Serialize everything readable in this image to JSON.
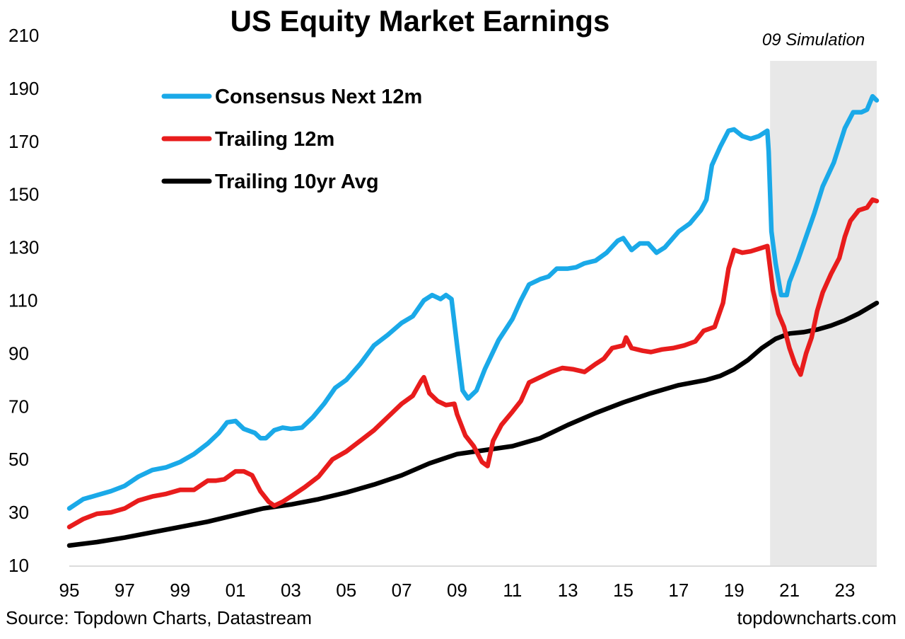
{
  "chart_data": {
    "type": "line",
    "title": "US Equity Market Earnings",
    "xlabel": "",
    "ylabel": "",
    "ylim": [
      10,
      210
    ],
    "yticks": [
      10,
      30,
      50,
      70,
      90,
      110,
      130,
      150,
      170,
      190,
      210
    ],
    "xlim": [
      1995,
      2024.15
    ],
    "xticks": [
      {
        "year": 1995,
        "label": "95"
      },
      {
        "year": 1997,
        "label": "97"
      },
      {
        "year": 1999,
        "label": "99"
      },
      {
        "year": 2001,
        "label": "01"
      },
      {
        "year": 2003,
        "label": "03"
      },
      {
        "year": 2005,
        "label": "05"
      },
      {
        "year": 2007,
        "label": "07"
      },
      {
        "year": 2009,
        "label": "09"
      },
      {
        "year": 2011,
        "label": "11"
      },
      {
        "year": 2013,
        "label": "13"
      },
      {
        "year": 2015,
        "label": "15"
      },
      {
        "year": 2017,
        "label": "17"
      },
      {
        "year": 2019,
        "label": "19"
      },
      {
        "year": 2021,
        "label": "21"
      },
      {
        "year": 2023,
        "label": "23"
      }
    ],
    "grid": false,
    "legend_position": "top-left",
    "shaded_region": {
      "x": [
        2020.3,
        2024.15
      ],
      "label": "09 Simulation",
      "color": "#e8e8e8"
    },
    "series": [
      {
        "name": "Consensus Next 12m",
        "color": "#1aa9e8",
        "points": [
          [
            1995.0,
            31.5
          ],
          [
            1995.5,
            35
          ],
          [
            1996.0,
            36.5
          ],
          [
            1996.5,
            38
          ],
          [
            1997.0,
            40
          ],
          [
            1997.5,
            43.5
          ],
          [
            1998.0,
            46
          ],
          [
            1998.5,
            47
          ],
          [
            1999.0,
            49
          ],
          [
            1999.5,
            52
          ],
          [
            2000.0,
            56
          ],
          [
            2000.4,
            60
          ],
          [
            2000.7,
            64
          ],
          [
            2001.0,
            64.5
          ],
          [
            2001.3,
            61.5
          ],
          [
            2001.7,
            60
          ],
          [
            2001.9,
            58
          ],
          [
            2002.1,
            58
          ],
          [
            2002.4,
            61
          ],
          [
            2002.7,
            62
          ],
          [
            2003.0,
            61.5
          ],
          [
            2003.4,
            62
          ],
          [
            2003.8,
            66
          ],
          [
            2004.2,
            71
          ],
          [
            2004.6,
            77
          ],
          [
            2005.0,
            80
          ],
          [
            2005.5,
            86
          ],
          [
            2006.0,
            93
          ],
          [
            2006.5,
            97
          ],
          [
            2007.0,
            101.5
          ],
          [
            2007.4,
            104
          ],
          [
            2007.8,
            110
          ],
          [
            2008.1,
            112
          ],
          [
            2008.4,
            110.5
          ],
          [
            2008.6,
            112
          ],
          [
            2008.8,
            110.5
          ],
          [
            2009.0,
            93
          ],
          [
            2009.2,
            76
          ],
          [
            2009.4,
            73
          ],
          [
            2009.7,
            76
          ],
          [
            2010.0,
            84
          ],
          [
            2010.5,
            95
          ],
          [
            2011.0,
            103
          ],
          [
            2011.3,
            110
          ],
          [
            2011.6,
            116
          ],
          [
            2012.0,
            118
          ],
          [
            2012.3,
            119
          ],
          [
            2012.6,
            122
          ],
          [
            2013.0,
            122
          ],
          [
            2013.3,
            122.5
          ],
          [
            2013.6,
            124
          ],
          [
            2014.0,
            125
          ],
          [
            2014.4,
            128
          ],
          [
            2014.8,
            132.5
          ],
          [
            2015.0,
            133.5
          ],
          [
            2015.3,
            129
          ],
          [
            2015.6,
            131.5
          ],
          [
            2015.9,
            131.5
          ],
          [
            2016.2,
            128
          ],
          [
            2016.5,
            130
          ],
          [
            2017.0,
            136
          ],
          [
            2017.4,
            139
          ],
          [
            2017.8,
            144
          ],
          [
            2018.0,
            148
          ],
          [
            2018.2,
            161
          ],
          [
            2018.5,
            168
          ],
          [
            2018.8,
            174
          ],
          [
            2019.0,
            174.5
          ],
          [
            2019.3,
            172
          ],
          [
            2019.6,
            171
          ],
          [
            2019.9,
            172
          ],
          [
            2020.2,
            174
          ],
          [
            2020.25,
            166
          ],
          [
            2020.35,
            136
          ],
          [
            2020.5,
            124
          ],
          [
            2020.7,
            112
          ],
          [
            2020.9,
            112
          ],
          [
            2021.0,
            117
          ],
          [
            2021.3,
            125
          ],
          [
            2021.6,
            134
          ],
          [
            2021.9,
            143
          ],
          [
            2022.2,
            153
          ],
          [
            2022.6,
            162
          ],
          [
            2023.0,
            175
          ],
          [
            2023.3,
            181
          ],
          [
            2023.6,
            181
          ],
          [
            2023.8,
            182
          ],
          [
            2024.0,
            187
          ],
          [
            2024.15,
            185.5
          ]
        ]
      },
      {
        "name": "Trailing 12m",
        "color": "#e81c1c",
        "points": [
          [
            1995.0,
            24.5
          ],
          [
            1995.5,
            27.5
          ],
          [
            1996.0,
            29.5
          ],
          [
            1996.5,
            30
          ],
          [
            1997.0,
            31.5
          ],
          [
            1997.5,
            34.5
          ],
          [
            1998.0,
            36
          ],
          [
            1998.5,
            37
          ],
          [
            1999.0,
            38.5
          ],
          [
            1999.5,
            38.5
          ],
          [
            2000.0,
            42
          ],
          [
            2000.3,
            42
          ],
          [
            2000.6,
            42.5
          ],
          [
            2001.0,
            45.5
          ],
          [
            2001.3,
            45.5
          ],
          [
            2001.6,
            44
          ],
          [
            2001.9,
            38
          ],
          [
            2002.2,
            34
          ],
          [
            2002.4,
            32.5
          ],
          [
            2002.7,
            34
          ],
          [
            2003.0,
            36
          ],
          [
            2003.5,
            39.5
          ],
          [
            2004.0,
            43.5
          ],
          [
            2004.5,
            50
          ],
          [
            2005.0,
            53
          ],
          [
            2005.5,
            57
          ],
          [
            2006.0,
            61
          ],
          [
            2006.5,
            66
          ],
          [
            2007.0,
            71
          ],
          [
            2007.4,
            74
          ],
          [
            2007.7,
            79.5
          ],
          [
            2007.8,
            81
          ],
          [
            2008.0,
            75
          ],
          [
            2008.3,
            72
          ],
          [
            2008.6,
            70.5
          ],
          [
            2008.9,
            71
          ],
          [
            2009.0,
            67
          ],
          [
            2009.3,
            59
          ],
          [
            2009.6,
            55
          ],
          [
            2009.9,
            49
          ],
          [
            2010.1,
            47.5
          ],
          [
            2010.3,
            57
          ],
          [
            2010.6,
            63
          ],
          [
            2011.0,
            68
          ],
          [
            2011.3,
            72
          ],
          [
            2011.6,
            79
          ],
          [
            2012.0,
            81
          ],
          [
            2012.4,
            83
          ],
          [
            2012.8,
            84.5
          ],
          [
            2013.2,
            84
          ],
          [
            2013.6,
            83
          ],
          [
            2014.0,
            86
          ],
          [
            2014.3,
            88
          ],
          [
            2014.6,
            92
          ],
          [
            2015.0,
            93
          ],
          [
            2015.1,
            96
          ],
          [
            2015.3,
            92
          ],
          [
            2015.7,
            91
          ],
          [
            2016.0,
            90.5
          ],
          [
            2016.4,
            91.5
          ],
          [
            2016.8,
            92
          ],
          [
            2017.2,
            93
          ],
          [
            2017.6,
            94.5
          ],
          [
            2017.9,
            98.5
          ],
          [
            2018.3,
            100
          ],
          [
            2018.6,
            109
          ],
          [
            2018.8,
            122
          ],
          [
            2019.0,
            129
          ],
          [
            2019.3,
            128
          ],
          [
            2019.6,
            128.5
          ],
          [
            2019.9,
            129.5
          ],
          [
            2020.2,
            130.5
          ],
          [
            2020.4,
            114
          ],
          [
            2020.6,
            105
          ],
          [
            2020.8,
            100
          ],
          [
            2021.0,
            92
          ],
          [
            2021.2,
            86
          ],
          [
            2021.4,
            82
          ],
          [
            2021.6,
            90
          ],
          [
            2021.8,
            96
          ],
          [
            2022.0,
            106
          ],
          [
            2022.2,
            113
          ],
          [
            2022.5,
            120
          ],
          [
            2022.8,
            126
          ],
          [
            2023.0,
            134
          ],
          [
            2023.2,
            140
          ],
          [
            2023.5,
            144
          ],
          [
            2023.8,
            145
          ],
          [
            2024.0,
            148
          ],
          [
            2024.15,
            147.5
          ]
        ]
      },
      {
        "name": "Trailing 10yr Avg",
        "color": "#000000",
        "points": [
          [
            1995.0,
            17.5
          ],
          [
            1996.0,
            18.8
          ],
          [
            1997.0,
            20.5
          ],
          [
            1998.0,
            22.5
          ],
          [
            1999.0,
            24.5
          ],
          [
            2000.0,
            26.5
          ],
          [
            2001.0,
            29
          ],
          [
            2002.0,
            31.5
          ],
          [
            2003.0,
            33
          ],
          [
            2004.0,
            35
          ],
          [
            2005.0,
            37.5
          ],
          [
            2006.0,
            40.5
          ],
          [
            2007.0,
            44
          ],
          [
            2008.0,
            48.5
          ],
          [
            2009.0,
            52
          ],
          [
            2010.0,
            53.5
          ],
          [
            2011.0,
            55
          ],
          [
            2012.0,
            58
          ],
          [
            2013.0,
            63
          ],
          [
            2014.0,
            67.5
          ],
          [
            2015.0,
            71.5
          ],
          [
            2016.0,
            75
          ],
          [
            2017.0,
            78
          ],
          [
            2018.0,
            80
          ],
          [
            2018.5,
            81.5
          ],
          [
            2019.0,
            84
          ],
          [
            2019.5,
            87.5
          ],
          [
            2020.0,
            92
          ],
          [
            2020.5,
            95.5
          ],
          [
            2021.0,
            97.5
          ],
          [
            2021.5,
            98
          ],
          [
            2022.0,
            99
          ],
          [
            2022.5,
            100.5
          ],
          [
            2023.0,
            102.5
          ],
          [
            2023.5,
            105
          ],
          [
            2024.15,
            109
          ]
        ]
      }
    ]
  },
  "footer": {
    "source": "Source: Topdown Charts, Datastream",
    "website": "topdowncharts.com"
  }
}
